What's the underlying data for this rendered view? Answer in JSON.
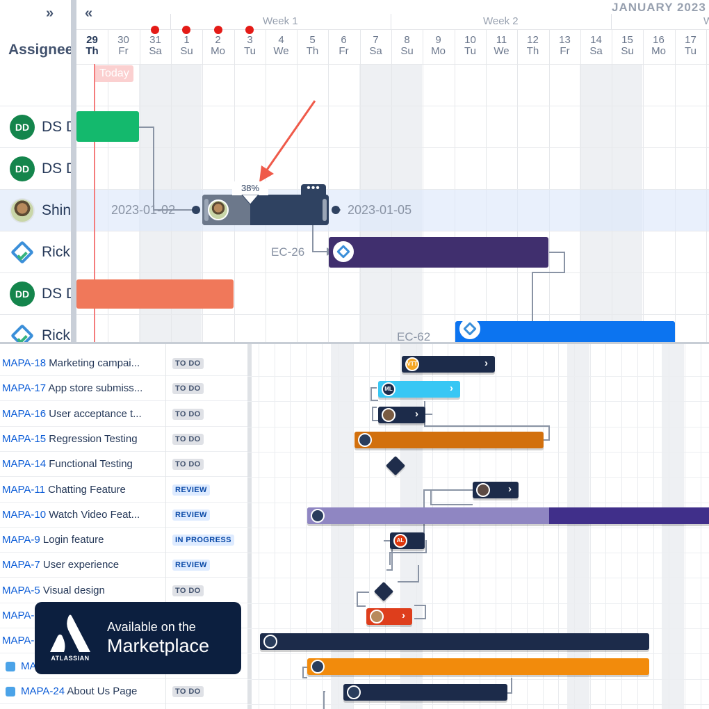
{
  "top": {
    "expand_icon": "double-chevron-right-icon",
    "collapse_icon": "double-chevron-left-icon",
    "assignee_header": "Assignee",
    "month_label": "JANUARY 2023",
    "weeks": [
      "Week 1",
      "Week 2",
      "W"
    ],
    "days": [
      {
        "n": "29",
        "w": "Th"
      },
      {
        "n": "30",
        "w": "Fr"
      },
      {
        "n": "31",
        "w": "Sa"
      },
      {
        "n": "1",
        "w": "Su"
      },
      {
        "n": "2",
        "w": "Mo"
      },
      {
        "n": "3",
        "w": "Tu"
      },
      {
        "n": "4",
        "w": "We"
      },
      {
        "n": "5",
        "w": "Th"
      },
      {
        "n": "6",
        "w": "Fr"
      },
      {
        "n": "7",
        "w": "Sa"
      },
      {
        "n": "8",
        "w": "Su"
      },
      {
        "n": "9",
        "w": "Mo"
      },
      {
        "n": "10",
        "w": "Tu"
      },
      {
        "n": "11",
        "w": "We"
      },
      {
        "n": "12",
        "w": "Th"
      },
      {
        "n": "13",
        "w": "Fr"
      },
      {
        "n": "14",
        "w": "Sa"
      },
      {
        "n": "15",
        "w": "Su"
      },
      {
        "n": "16",
        "w": "Mo"
      },
      {
        "n": "17",
        "w": "Tu"
      }
    ],
    "today_label": "Today",
    "assignees": [
      {
        "initials": "DD",
        "name": "DS D",
        "avatar": "initials"
      },
      {
        "initials": "DD",
        "name": "DS D",
        "avatar": "initials"
      },
      {
        "initials": "",
        "name": "Shin",
        "avatar": "photo"
      },
      {
        "initials": "",
        "name": "Rick",
        "avatar": "jira-diamond"
      },
      {
        "initials": "DD",
        "name": "DS D",
        "avatar": "initials"
      },
      {
        "initials": "",
        "name": "Rick",
        "avatar": "jira-diamond"
      }
    ],
    "selected_task": {
      "progress_label": "38%",
      "progress": 0.38,
      "start_date": "2023-01-02",
      "end_date": "2023-01-05",
      "more_label": "•••"
    },
    "task_keys": [
      "EC-26",
      "EC-62"
    ],
    "colors": {
      "green": "#14b96d",
      "coral": "#f0785a",
      "purple": "#402f6e",
      "blue": "#0c74f0",
      "navy": "#2f4261",
      "today": "#f47c7c",
      "holiday_dot": "#e41b17",
      "arrow": "#ef5a4a"
    }
  },
  "tasks": [
    {
      "key": "MAPA-18",
      "title": "Marketing campai...",
      "status": "TO DO",
      "type": "todo"
    },
    {
      "key": "MAPA-17",
      "title": "App store submiss...",
      "status": "TO DO",
      "type": "todo"
    },
    {
      "key": "MAPA-16",
      "title": "User acceptance t...",
      "status": "TO DO",
      "type": "todo"
    },
    {
      "key": "MAPA-15",
      "title": "Regression Testing",
      "status": "TO DO",
      "type": "todo"
    },
    {
      "key": "MAPA-14",
      "title": "Functional Testing",
      "status": "TO DO",
      "type": "todo"
    },
    {
      "key": "MAPA-11",
      "title": "Chatting Feature",
      "status": "REVIEW",
      "type": "review"
    },
    {
      "key": "MAPA-10",
      "title": "Watch Video Feat...",
      "status": "REVIEW",
      "type": "review"
    },
    {
      "key": "MAPA-9",
      "title": "Login feature",
      "status": "IN PROGRESS",
      "type": "prog"
    },
    {
      "key": "MAPA-7",
      "title": "User experience",
      "status": "REVIEW",
      "type": "review"
    },
    {
      "key": "MAPA-5",
      "title": "Visual design",
      "status": "TO DO",
      "type": "todo"
    },
    {
      "key": "MAPA-",
      "title": "",
      "status": "",
      "type": "none"
    },
    {
      "key": "MAPA-",
      "title": "",
      "status": "",
      "type": "none"
    },
    {
      "key": "MAPA-",
      "title": "",
      "status": "",
      "type": "none",
      "icon": true
    },
    {
      "key": "MAPA-24",
      "title": "About Us Page",
      "status": "TO DO",
      "type": "todo",
      "icon": true
    }
  ],
  "bottom_bars": [
    {
      "avatar_text": "VTT",
      "avatar_color": "#f5a623"
    },
    {
      "avatar_text": "ML",
      "avatar_color": "#1c2b4a"
    },
    {
      "avatar_text": "",
      "avatar_color": "#7a5c43"
    },
    {
      "avatar_text": "",
      "avatar_color": "#2a3d5c"
    },
    {
      "avatar_text": "",
      "avatar_color": "#5c4a43"
    },
    {
      "avatar_text": "",
      "avatar_color": "#2a3d5c"
    },
    {
      "avatar_text": "AL",
      "avatar_color": "#de350b"
    },
    {
      "avatar_text": "",
      "avatar_color": "#b88a5c"
    }
  ],
  "badge": {
    "brand": "ATLASSIAN",
    "line1": "Available on the",
    "line2": "Marketplace"
  }
}
